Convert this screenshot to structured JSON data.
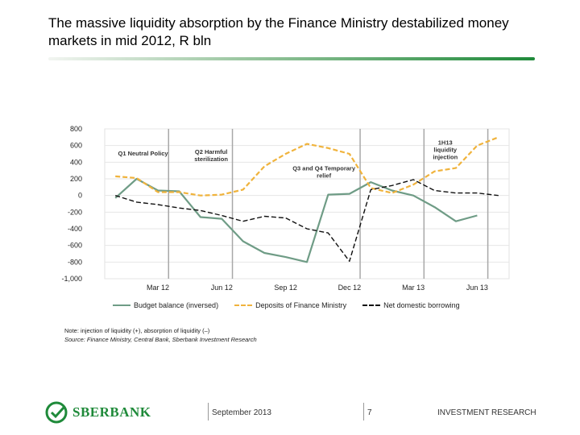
{
  "slide": {
    "title": "The massive liquidity absorption by the Finance Ministry destabilized money markets in mid 2012, R bln",
    "note": "Note: injection of liquidity (+), absorption of liquidity (–)",
    "source": "Source: Finance Ministry, Central Bank, Sberbank Investment Research"
  },
  "footer": {
    "logo_text": "SBERBANK",
    "date": "September 2013",
    "page": "7",
    "department": "INVESTMENT RESEARCH"
  },
  "colors": {
    "budget": "#6f9c86",
    "deposits": "#f0b33c",
    "borrowing": "#111111",
    "brand": "#1f8a3a"
  },
  "chart_data": {
    "type": "line",
    "ylim": [
      -1000,
      800
    ],
    "y_ticks": [
      800,
      600,
      400,
      200,
      0,
      -200,
      -400,
      -600,
      -800,
      -1000
    ],
    "y_tick_labels": [
      "800",
      "600",
      "400",
      "200",
      "0",
      "-200",
      "-400",
      "-600",
      "-800",
      "-1,000"
    ],
    "x_labels": [
      {
        "label": "Mar 12",
        "index": 2
      },
      {
        "label": "Jun 12",
        "index": 5
      },
      {
        "label": "Sep 12",
        "index": 8
      },
      {
        "label": "Dec 12",
        "index": 11
      },
      {
        "label": "Mar 13",
        "index": 14
      },
      {
        "label": "Jun 13",
        "index": 17
      }
    ],
    "x": [
      "Jan 12",
      "Feb 12",
      "Mar 12",
      "Apr 12",
      "May 12",
      "Jun 12",
      "Jul 12",
      "Aug 12",
      "Sep 12",
      "Oct 12",
      "Nov 12",
      "Dec 12",
      "Jan 13",
      "Feb 13",
      "Mar 13",
      "Apr 13",
      "May 13",
      "Jun 13",
      "Jul 13"
    ],
    "vertical_dividers": [
      2.5,
      5.5,
      11.5,
      14.5,
      17.5
    ],
    "grid": true,
    "legend_position": "bottom",
    "series": [
      {
        "name": "Budget balance (inversed)",
        "color": "#6f9c86",
        "style": "solid",
        "values": [
          -30,
          200,
          60,
          50,
          -260,
          -280,
          -550,
          -690,
          -740,
          -800,
          10,
          20,
          160,
          60,
          0,
          -140,
          -310,
          -240,
          null
        ]
      },
      {
        "name": "Deposits of Finance Ministry",
        "color": "#f0b33c",
        "style": "dashed",
        "values": [
          230,
          210,
          40,
          40,
          0,
          10,
          70,
          350,
          500,
          620,
          570,
          500,
          90,
          30,
          130,
          290,
          330,
          600,
          700
        ]
      },
      {
        "name": "Net domestic borrowing",
        "color": "#111111",
        "style": "dashed",
        "values": [
          0,
          -80,
          -110,
          -150,
          -180,
          -240,
          -310,
          -250,
          -270,
          -400,
          -450,
          -790,
          70,
          120,
          190,
          60,
          30,
          30,
          0
        ]
      }
    ],
    "annotations": [
      {
        "lines": [
          "Q1 Neutral Policy"
        ],
        "x": 1.3,
        "y": 480
      },
      {
        "lines": [
          "Q2 Harmful",
          "sterilization"
        ],
        "x": 4.5,
        "y": 500
      },
      {
        "lines": [
          "Q3 and Q4 Temporary",
          "relief"
        ],
        "x": 9.8,
        "y": 300
      },
      {
        "lines": [
          "1H13",
          "liquidity",
          "injection"
        ],
        "x": 15.5,
        "y": 610
      }
    ]
  }
}
